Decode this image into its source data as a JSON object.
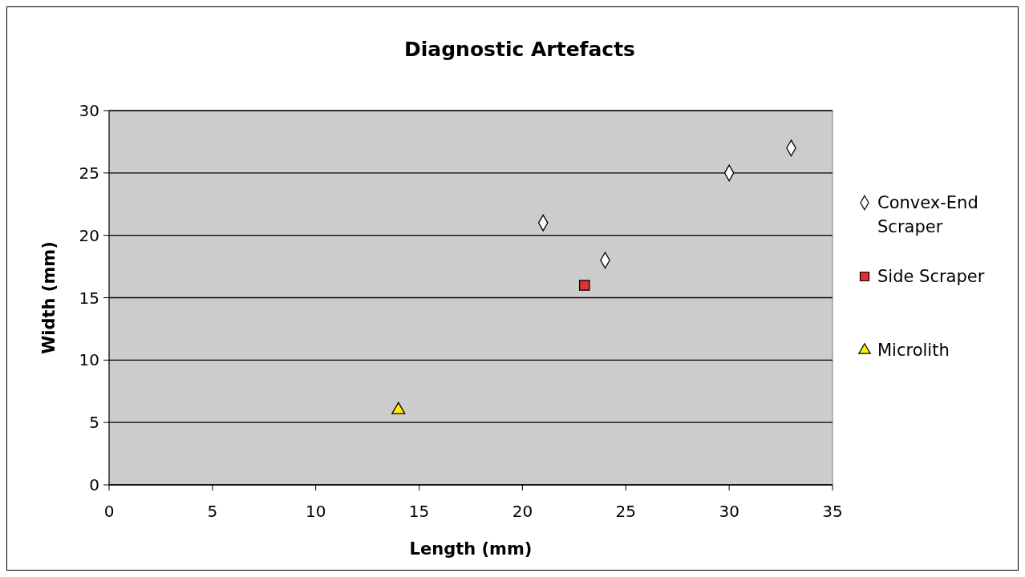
{
  "chart_data": {
    "type": "scatter",
    "title": "Diagnostic Artefacts",
    "xlabel": "Length (mm)",
    "ylabel": "Width (mm)",
    "xlim": [
      0,
      35
    ],
    "xticks": [
      0,
      5,
      10,
      15,
      20,
      25,
      30,
      35
    ],
    "ylim": [
      0,
      30
    ],
    "yticks": [
      0,
      5,
      10,
      15,
      20,
      25,
      30
    ],
    "grid": "y",
    "legend": "right",
    "series": [
      {
        "name": "Convex-End Scraper",
        "color": "#ffffff",
        "marker": "diamond",
        "x": [
          21,
          24,
          30,
          33
        ],
        "values": [
          21,
          18,
          25,
          27
        ]
      },
      {
        "name": "Side Scraper",
        "color": "#e03036",
        "marker": "square",
        "x": [
          23
        ],
        "values": [
          16
        ]
      },
      {
        "name": "Microlith",
        "color": "#ffee00",
        "marker": "triangle",
        "x": [
          14
        ],
        "values": [
          6
        ]
      }
    ]
  }
}
